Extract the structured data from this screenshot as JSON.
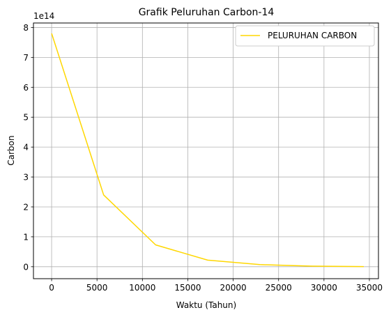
{
  "chart_data": {
    "type": "line",
    "title": "Grafik Peluruhan Carbon-14",
    "xlabel": "Waktu (Tahun)",
    "ylabel": "Carbon",
    "y_offset_label": "1e14",
    "y_multiplier": 100000000000000.0,
    "xlim": [
      -2000,
      36000
    ],
    "ylim": [
      -0.4,
      8.15
    ],
    "xticks": [
      0,
      5000,
      10000,
      15000,
      20000,
      25000,
      30000,
      35000
    ],
    "yticks": [
      0,
      1,
      2,
      3,
      4,
      5,
      6,
      7,
      8
    ],
    "grid": true,
    "legend_position": "upper right",
    "series": [
      {
        "name": "PELURUHAN CARBON",
        "color": "#FFD700",
        "x": [
          0,
          5730,
          11460,
          17190,
          22920,
          28650,
          34380
        ],
        "y": [
          7.8,
          2.4,
          0.73,
          0.22,
          0.07,
          0.02,
          0.005
        ]
      }
    ]
  }
}
